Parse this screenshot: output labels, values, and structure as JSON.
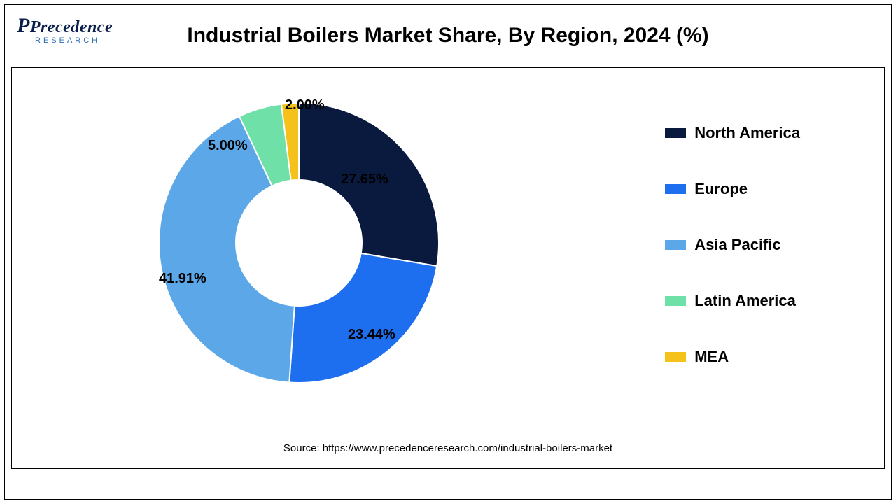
{
  "logo": {
    "main": "Precedence",
    "sub": "RESEARCH"
  },
  "title": "Industrial Boilers Market Share, By Region, 2024 (%)",
  "chart": {
    "type": "donut",
    "inner_radius_pct": 45,
    "outer_radius_pct": 100,
    "background_color": "#ffffff",
    "border_color": "#000000",
    "slice_border_color": "#ffffff",
    "slice_border_width": 2,
    "start_angle_deg": 0,
    "direction": "clockwise",
    "slices": [
      {
        "label": "North America",
        "value": 27.65,
        "color": "#0a1a3f",
        "display": "27.65%"
      },
      {
        "label": "Europe",
        "value": 23.44,
        "color": "#1e6ff0",
        "display": "23.44%"
      },
      {
        "label": "Asia Pacific",
        "value": 41.91,
        "color": "#5ba7e8",
        "display": "41.91%"
      },
      {
        "label": "Latin America",
        "value": 5.0,
        "color": "#6ee0a8",
        "display": "5.00%"
      },
      {
        "label": "MEA",
        "value": 2.0,
        "color": "#f5c21b",
        "display": "2.00%"
      }
    ],
    "label_fontsize": 20,
    "label_fontweight": "bold",
    "label_color": "#000000"
  },
  "legend": {
    "position": "right",
    "fontsize": 22,
    "fontweight": "bold",
    "swatch_w": 30,
    "swatch_h": 14,
    "items": [
      {
        "text": "North America",
        "color": "#0a1a3f"
      },
      {
        "text": "Europe",
        "color": "#1e6ff0"
      },
      {
        "text": "Asia Pacific",
        "color": "#5ba7e8"
      },
      {
        "text": "Latin America",
        "color": "#6ee0a8"
      },
      {
        "text": "MEA",
        "color": "#f5c21b"
      }
    ]
  },
  "source": "Source: https://www.precedenceresearch.com/industrial-boilers-market"
}
